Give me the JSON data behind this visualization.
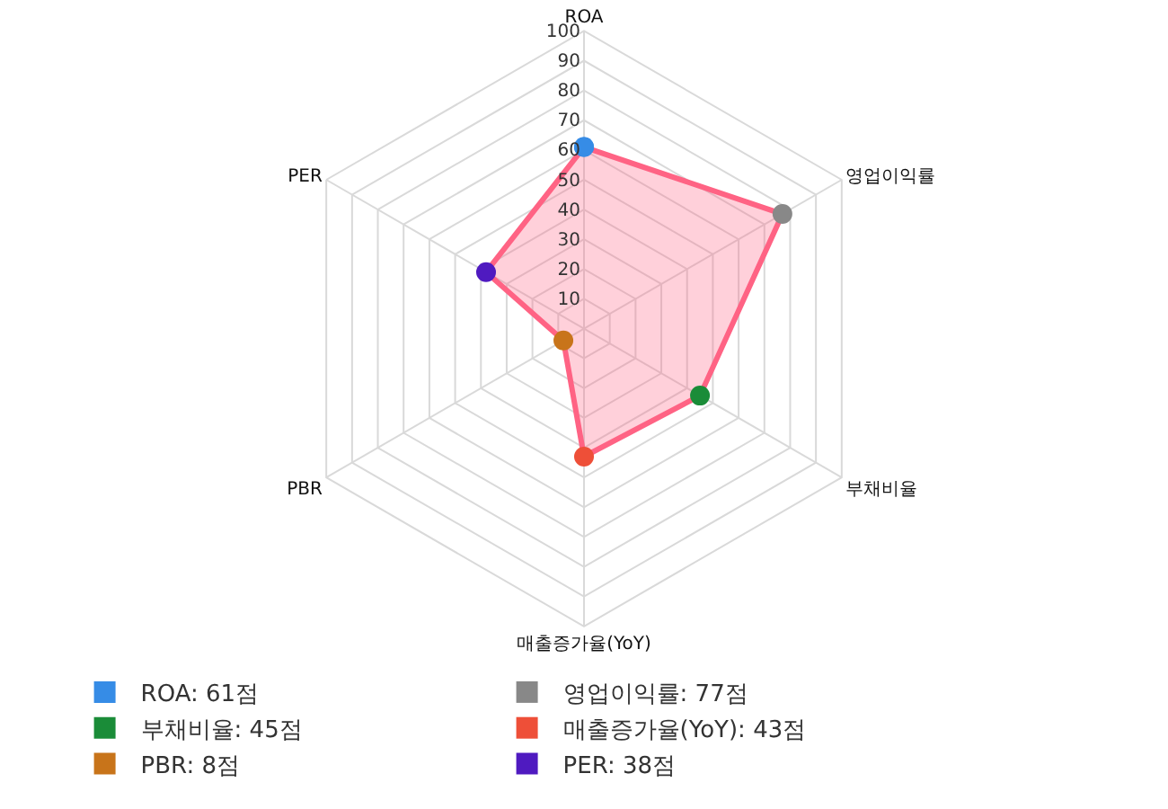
{
  "chart_data": {
    "type": "radar",
    "categories": [
      "ROA",
      "영업이익률",
      "부채비율",
      "매출증가율(YoY)",
      "PBR",
      "PER"
    ],
    "ylim": [
      0,
      100
    ],
    "yticks": [
      10,
      20,
      30,
      40,
      50,
      60,
      70,
      80,
      90,
      100
    ],
    "marker": "circle",
    "grid": true,
    "series": [
      {
        "color": "#ff6384",
        "colors": [
          "#368ce6",
          "#888888",
          "#1a8c38",
          "#ee4f38",
          "#c8741a",
          "#4f1ac0"
        ],
        "values": [
          61,
          77,
          45,
          43,
          8,
          38
        ]
      }
    ],
    "annotations": [
      "ROA: 61점",
      "영업이익률: 77점",
      "부채비율: 45점",
      "매출증가율(YoY): 43점",
      "PBR: 8점",
      "PER: 38점"
    ]
  }
}
